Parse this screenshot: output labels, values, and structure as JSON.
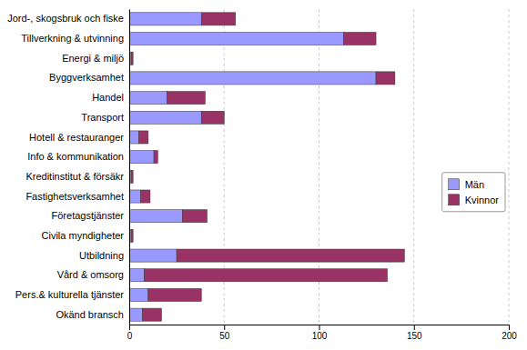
{
  "chart_data": {
    "type": "bar",
    "orientation": "horizontal",
    "stacked": true,
    "categories": [
      "Jord-, skogsbruk och fiske",
      "Tillverkning & utvinning",
      "Energi & miljö",
      "Byggverksamhet",
      "Handel",
      "Transport",
      "Hotell & restauranger",
      "Info & kommunikation",
      "Kreditinstitut & försäkr",
      "Fastighetsverksamhet",
      "Företagstjänster",
      "Civila myndigheter",
      "Utbildning",
      "Vård & omsorg",
      "Pers.& kulturella tjänster",
      "Okänd bransch"
    ],
    "series": [
      {
        "name": "Män",
        "color": "#9999ff",
        "values": [
          38,
          113,
          1,
          130,
          20,
          38,
          5,
          13,
          1,
          6,
          28,
          1,
          25,
          8,
          10,
          7
        ]
      },
      {
        "name": "Kvinnor",
        "color": "#993366",
        "values": [
          18,
          17,
          1,
          10,
          20,
          12,
          5,
          2,
          1,
          5,
          13,
          1,
          120,
          128,
          28,
          10
        ]
      }
    ],
    "xlim": [
      0,
      200
    ],
    "xticks": [
      0,
      50,
      100,
      150,
      200
    ],
    "grid": true,
    "legend": "right"
  }
}
